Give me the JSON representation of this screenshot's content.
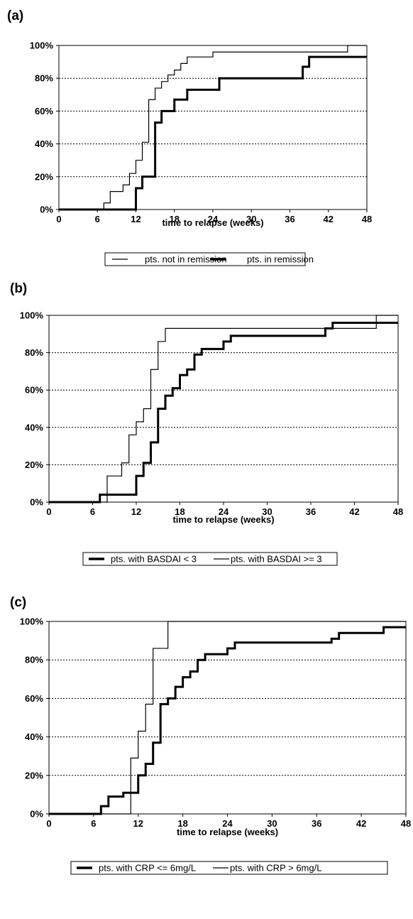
{
  "chart_data": [
    {
      "type": "line",
      "panel_label": "(a)",
      "xlabel": "time to relapse (weeks)",
      "ylabel": "",
      "x_ticks": [
        0,
        6,
        12,
        18,
        24,
        30,
        36,
        42,
        48
      ],
      "y_ticks": [
        "0%",
        "20%",
        "40%",
        "60%",
        "80%",
        "100%"
      ],
      "xlim": [
        0,
        48
      ],
      "ylim": [
        0,
        100
      ],
      "grid": "horizontal dotted",
      "legend_position": "bottom",
      "series": [
        {
          "name": "pts. not in remission",
          "style": "thin",
          "x": [
            0,
            7,
            8,
            10,
            11,
            12,
            13,
            14,
            15,
            16,
            17,
            18,
            19,
            20,
            24,
            45,
            48
          ],
          "y": [
            0,
            4,
            11,
            15,
            22,
            30,
            41,
            67,
            74,
            78,
            82,
            85,
            89,
            93,
            96,
            100,
            100
          ]
        },
        {
          "name": "pts. in remission",
          "style": "thick",
          "x": [
            0,
            12,
            13,
            15,
            16,
            18,
            20,
            25,
            38,
            39,
            48
          ],
          "y": [
            0,
            13,
            20,
            53,
            60,
            67,
            73,
            80,
            87,
            93,
            93
          ]
        }
      ]
    },
    {
      "type": "line",
      "panel_label": "(b)",
      "xlabel": "time to relapse (weeks)",
      "ylabel": "",
      "x_ticks": [
        0,
        6,
        12,
        18,
        24,
        30,
        36,
        42,
        48
      ],
      "y_ticks": [
        "0%",
        "20%",
        "40%",
        "60%",
        "80%",
        "100%"
      ],
      "xlim": [
        0,
        48
      ],
      "ylim": [
        0,
        100
      ],
      "grid": "horizontal dotted",
      "legend_position": "bottom",
      "series": [
        {
          "name": "pts. with BASDAI < 3",
          "style": "thick",
          "x": [
            0,
            7,
            12,
            13,
            14,
            15,
            16,
            17,
            18,
            19,
            20,
            21,
            24,
            25,
            38,
            39,
            48
          ],
          "y": [
            0,
            4,
            14,
            21,
            32,
            50,
            57,
            61,
            68,
            71,
            79,
            82,
            86,
            89,
            93,
            96,
            96
          ]
        },
        {
          "name": "pts. with BASDAI >= 3",
          "style": "thin",
          "x": [
            0,
            8,
            10,
            11,
            12,
            13,
            14,
            15,
            16,
            45,
            48
          ],
          "y": [
            0,
            14,
            21,
            36,
            43,
            50,
            71,
            86,
            93,
            100,
            100
          ]
        }
      ]
    },
    {
      "type": "line",
      "panel_label": "(c)",
      "xlabel": "time to relapse (weeks)",
      "ylabel": "",
      "x_ticks": [
        0,
        6,
        12,
        18,
        24,
        30,
        36,
        42,
        48
      ],
      "y_ticks": [
        "0%",
        "20%",
        "40%",
        "60%",
        "80%",
        "100%"
      ],
      "xlim": [
        0,
        48
      ],
      "ylim": [
        0,
        100
      ],
      "grid": "horizontal dotted",
      "legend_position": "bottom",
      "series": [
        {
          "name": "pts. with CRP <= 6mg/L",
          "style": "thick",
          "x": [
            0,
            7,
            8,
            10,
            12,
            13,
            14,
            15,
            16,
            17,
            18,
            19,
            20,
            21,
            24,
            25,
            38,
            39,
            45,
            48
          ],
          "y": [
            0,
            4,
            9,
            11,
            20,
            26,
            37,
            57,
            60,
            66,
            71,
            74,
            80,
            83,
            86,
            89,
            91,
            94,
            97,
            97
          ]
        },
        {
          "name": "pts. with CRP > 6mg/L",
          "style": "thin",
          "x": [
            0,
            11,
            12,
            13,
            14,
            16,
            48
          ],
          "y": [
            0,
            29,
            43,
            57,
            86,
            100,
            100
          ]
        }
      ]
    }
  ]
}
